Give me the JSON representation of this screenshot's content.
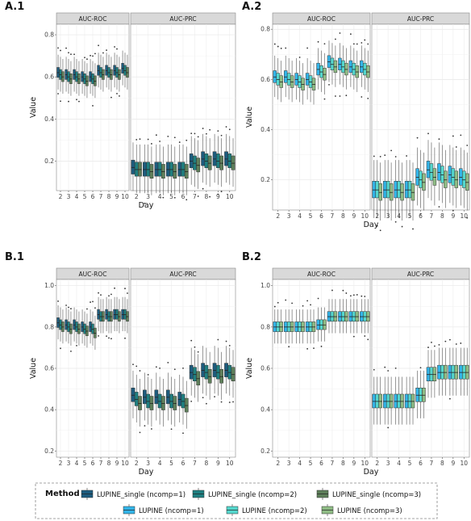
{
  "figure": {
    "method_colors": {
      "LUPINE_single (ncomp=1)": "#1e5c7e",
      "LUPINE_single (ncomp=2)": "#1f7f80",
      "LUPINE_single (ncomp=3)": "#5e7f5a",
      "LUPINE (ncomp=1)": "#33b4e8",
      "LUPINE (ncomp=2)": "#55d7cd",
      "LUPINE (ncomp=3)": "#8fbc85"
    },
    "legend": {
      "title": "Method",
      "items": [
        "LUPINE_single (ncomp=1)",
        "LUPINE_single (ncomp=2)",
        "LUPINE_single (ncomp=3)",
        "LUPINE (ncomp=1)",
        "LUPINE (ncomp=2)",
        "LUPINE (ncomp=3)"
      ]
    }
  },
  "chart_data": [
    {
      "panel": "A.1",
      "type": "boxplot",
      "facets": [
        "AUC-ROC",
        "AUC-PRC"
      ],
      "x": [
        2,
        3,
        4,
        5,
        6,
        7,
        8,
        9,
        10
      ],
      "xlabel": "Day",
      "ylabel": "Value",
      "ylim": [
        0.06,
        0.85
      ],
      "yticks": [
        0.2,
        0.4,
        0.6,
        0.8
      ],
      "methods": [
        "LUPINE_single (ncomp=1)",
        "LUPINE_single (ncomp=2)",
        "LUPINE_single (ncomp=3)"
      ],
      "medians": {
        "AUC-ROC": [
          [
            0.62,
            0.61,
            0.6
          ],
          [
            0.61,
            0.6,
            0.59
          ],
          [
            0.61,
            0.6,
            0.59
          ],
          [
            0.6,
            0.59,
            0.58
          ],
          [
            0.6,
            0.59,
            0.58
          ],
          [
            0.63,
            0.62,
            0.61
          ],
          [
            0.63,
            0.62,
            0.61
          ],
          [
            0.63,
            0.62,
            0.61
          ],
          [
            0.64,
            0.63,
            0.62
          ]
        ],
        "AUC-PRC": [
          [
            0.17,
            0.16,
            0.16
          ],
          [
            0.16,
            0.16,
            0.15
          ],
          [
            0.16,
            0.16,
            0.15
          ],
          [
            0.16,
            0.16,
            0.15
          ],
          [
            0.16,
            0.16,
            0.15
          ],
          [
            0.2,
            0.19,
            0.18
          ],
          [
            0.21,
            0.2,
            0.19
          ],
          [
            0.21,
            0.2,
            0.19
          ],
          [
            0.21,
            0.2,
            0.19
          ]
        ]
      }
    },
    {
      "panel": "A.2",
      "type": "boxplot",
      "facets": [
        "AUC-ROC",
        "AUC-PRC"
      ],
      "x": [
        2,
        3,
        4,
        5,
        6,
        7,
        8,
        9,
        10
      ],
      "xlabel": "Day",
      "ylabel": "Value",
      "ylim": [
        0.08,
        0.82
      ],
      "yticks": [
        0.2,
        0.4,
        0.6,
        0.8
      ],
      "methods": [
        "LUPINE (ncomp=1)",
        "LUPINE (ncomp=2)",
        "LUPINE (ncomp=3)"
      ],
      "medians": {
        "AUC-ROC": [
          [
            0.61,
            0.6,
            0.59
          ],
          [
            0.61,
            0.6,
            0.59
          ],
          [
            0.6,
            0.59,
            0.58
          ],
          [
            0.6,
            0.59,
            0.58
          ],
          [
            0.64,
            0.63,
            0.62
          ],
          [
            0.67,
            0.66,
            0.65
          ],
          [
            0.66,
            0.65,
            0.64
          ],
          [
            0.65,
            0.64,
            0.63
          ],
          [
            0.65,
            0.64,
            0.63
          ]
        ],
        "AUC-PRC": [
          [
            0.16,
            0.16,
            0.15
          ],
          [
            0.16,
            0.16,
            0.15
          ],
          [
            0.16,
            0.16,
            0.15
          ],
          [
            0.16,
            0.16,
            0.15
          ],
          [
            0.21,
            0.2,
            0.19
          ],
          [
            0.24,
            0.23,
            0.21
          ],
          [
            0.23,
            0.22,
            0.2
          ],
          [
            0.22,
            0.21,
            0.2
          ],
          [
            0.21,
            0.2,
            0.19
          ]
        ]
      }
    },
    {
      "panel": "B.1",
      "type": "boxplot",
      "facets": [
        "AUC-ROC",
        "AUC-PRC"
      ],
      "x": [
        2,
        3,
        4,
        5,
        6,
        7,
        8,
        9,
        10
      ],
      "xlabel": "Day",
      "ylabel": "Value",
      "ylim": [
        0.17,
        1.03
      ],
      "yticks": [
        0.2,
        0.4,
        0.6,
        0.8,
        1.0
      ],
      "methods": [
        "LUPINE_single (ncomp=1)",
        "LUPINE_single (ncomp=2)",
        "LUPINE_single (ncomp=3)"
      ],
      "medians": {
        "AUC-ROC": [
          [
            0.82,
            0.81,
            0.8
          ],
          [
            0.81,
            0.8,
            0.79
          ],
          [
            0.81,
            0.8,
            0.79
          ],
          [
            0.8,
            0.79,
            0.78
          ],
          [
            0.8,
            0.79,
            0.77
          ],
          [
            0.86,
            0.85,
            0.85
          ],
          [
            0.86,
            0.85,
            0.85
          ],
          [
            0.86,
            0.86,
            0.85
          ],
          [
            0.86,
            0.86,
            0.85
          ]
        ],
        "AUC-PRC": [
          [
            0.47,
            0.45,
            0.43
          ],
          [
            0.46,
            0.44,
            0.43
          ],
          [
            0.46,
            0.44,
            0.43
          ],
          [
            0.46,
            0.44,
            0.43
          ],
          [
            0.45,
            0.44,
            0.42
          ],
          [
            0.58,
            0.57,
            0.55
          ],
          [
            0.59,
            0.58,
            0.56
          ],
          [
            0.59,
            0.58,
            0.56
          ],
          [
            0.59,
            0.58,
            0.57
          ]
        ]
      }
    },
    {
      "panel": "B.2",
      "type": "boxplot",
      "facets": [
        "AUC-ROC",
        "AUC-PRC"
      ],
      "x": [
        2,
        3,
        4,
        5,
        6,
        7,
        8,
        9,
        10
      ],
      "xlabel": "Day",
      "ylabel": "Value",
      "ylim": [
        0.17,
        1.03
      ],
      "yticks": [
        0.2,
        0.4,
        0.6,
        0.8,
        1.0
      ],
      "methods": [
        "LUPINE (ncomp=1)",
        "LUPINE (ncomp=2)",
        "LUPINE (ncomp=3)"
      ],
      "medians": {
        "AUC-ROC": [
          [
            0.8,
            0.8,
            0.8
          ],
          [
            0.8,
            0.8,
            0.8
          ],
          [
            0.8,
            0.8,
            0.8
          ],
          [
            0.8,
            0.8,
            0.8
          ],
          [
            0.81,
            0.81,
            0.81
          ],
          [
            0.85,
            0.85,
            0.85
          ],
          [
            0.85,
            0.85,
            0.85
          ],
          [
            0.85,
            0.85,
            0.85
          ],
          [
            0.85,
            0.85,
            0.85
          ]
        ],
        "AUC-PRC": [
          [
            0.44,
            0.44,
            0.44
          ],
          [
            0.44,
            0.44,
            0.44
          ],
          [
            0.44,
            0.44,
            0.44
          ],
          [
            0.44,
            0.44,
            0.44
          ],
          [
            0.47,
            0.47,
            0.47
          ],
          [
            0.57,
            0.57,
            0.57
          ],
          [
            0.58,
            0.58,
            0.58
          ],
          [
            0.58,
            0.58,
            0.58
          ],
          [
            0.58,
            0.58,
            0.58
          ]
        ]
      }
    }
  ]
}
